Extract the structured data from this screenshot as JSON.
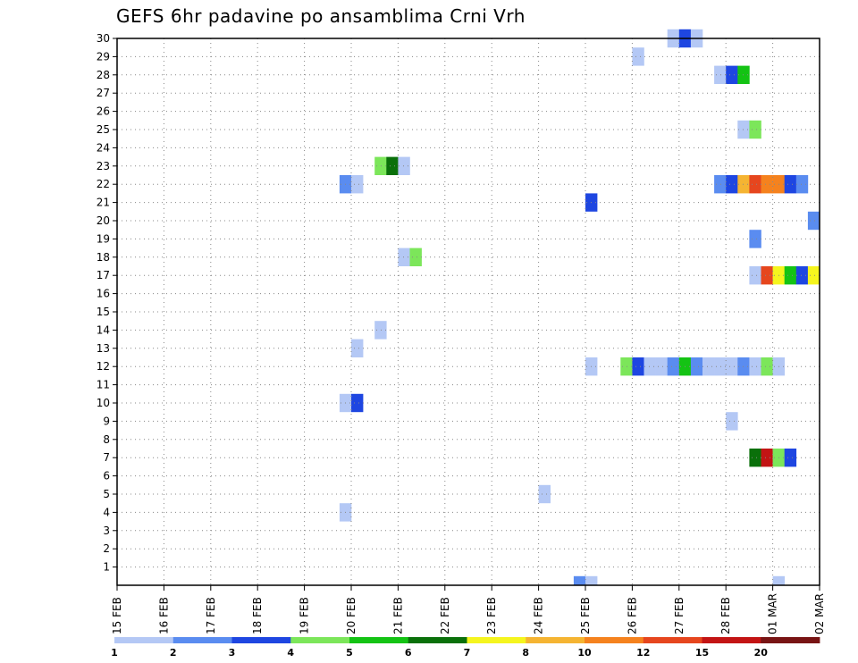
{
  "chart_data": {
    "type": "heatmap",
    "title": "GEFS 6hr padavine po ansamblima Crni Vrh",
    "xlabel": "",
    "ylabel": "",
    "x_ticks": [
      "15 FEB",
      "16 FEB",
      "17 FEB",
      "18 FEB",
      "19 FEB",
      "20 FEB",
      "21 FEB",
      "22 FEB",
      "23 FEB",
      "24 FEB",
      "25 FEB",
      "26 FEB",
      "27 FEB",
      "28 FEB",
      "01 MAR",
      "02 MAR"
    ],
    "y_ticks": [
      1,
      2,
      3,
      4,
      5,
      6,
      7,
      8,
      9,
      10,
      11,
      12,
      13,
      14,
      15,
      16,
      17,
      18,
      19,
      20,
      21,
      22,
      23,
      24,
      25,
      26,
      27,
      28,
      29,
      30
    ],
    "x_range_days": [
      0,
      15
    ],
    "time_step_hours": 6,
    "grid": true,
    "legend": {
      "placement": "bottom",
      "labels": [
        "1",
        "2",
        "3",
        "4",
        "5",
        "6",
        "7",
        "8",
        "10",
        "12",
        "15",
        "20"
      ],
      "colors": [
        "#b4c8f5",
        "#5a8cf0",
        "#1e46e1",
        "#7ce65a",
        "#14c314",
        "#0a700a",
        "#f5f51e",
        "#f5b432",
        "#f5821e",
        "#e6461e",
        "#c31414",
        "#781414"
      ]
    },
    "cells": [
      {
        "member": 30,
        "day": 11.75,
        "level": 1
      },
      {
        "member": 30,
        "day": 12.0,
        "level": 3
      },
      {
        "member": 30,
        "day": 12.25,
        "level": 1
      },
      {
        "member": 29,
        "day": 11.0,
        "level": 1
      },
      {
        "member": 28,
        "day": 12.75,
        "level": 1
      },
      {
        "member": 28,
        "day": 13.0,
        "level": 3
      },
      {
        "member": 28,
        "day": 13.25,
        "level": 5
      },
      {
        "member": 25,
        "day": 13.25,
        "level": 1
      },
      {
        "member": 25,
        "day": 13.5,
        "level": 4
      },
      {
        "member": 23,
        "day": 5.5,
        "level": 4
      },
      {
        "member": 23,
        "day": 5.75,
        "level": 6
      },
      {
        "member": 23,
        "day": 6.0,
        "level": 1
      },
      {
        "member": 22,
        "day": 4.75,
        "level": 2
      },
      {
        "member": 22,
        "day": 5.0,
        "level": 1
      },
      {
        "member": 22,
        "day": 12.75,
        "level": 2
      },
      {
        "member": 22,
        "day": 13.0,
        "level": 3
      },
      {
        "member": 22,
        "day": 13.25,
        "level": 8
      },
      {
        "member": 22,
        "day": 13.5,
        "level": 10
      },
      {
        "member": 22,
        "day": 13.75,
        "level": 9
      },
      {
        "member": 22,
        "day": 14.0,
        "level": 9
      },
      {
        "member": 22,
        "day": 14.25,
        "level": 3
      },
      {
        "member": 22,
        "day": 14.5,
        "level": 2
      },
      {
        "member": 21,
        "day": 10.0,
        "level": 3
      },
      {
        "member": 20,
        "day": 14.75,
        "level": 2
      },
      {
        "member": 19,
        "day": 13.5,
        "level": 2
      },
      {
        "member": 18,
        "day": 6.0,
        "level": 1
      },
      {
        "member": 18,
        "day": 6.25,
        "level": 4
      },
      {
        "member": 17,
        "day": 13.5,
        "level": 1
      },
      {
        "member": 17,
        "day": 13.75,
        "level": 10
      },
      {
        "member": 17,
        "day": 14.0,
        "level": 7
      },
      {
        "member": 17,
        "day": 14.25,
        "level": 5
      },
      {
        "member": 17,
        "day": 14.5,
        "level": 3
      },
      {
        "member": 17,
        "day": 14.75,
        "level": 7
      },
      {
        "member": 14,
        "day": 5.5,
        "level": 1
      },
      {
        "member": 13,
        "day": 5.0,
        "level": 1
      },
      {
        "member": 12,
        "day": 10.0,
        "level": 1
      },
      {
        "member": 12,
        "day": 10.75,
        "level": 4
      },
      {
        "member": 12,
        "day": 11.0,
        "level": 3
      },
      {
        "member": 12,
        "day": 11.25,
        "level": 1
      },
      {
        "member": 12,
        "day": 11.5,
        "level": 1
      },
      {
        "member": 12,
        "day": 11.75,
        "level": 2
      },
      {
        "member": 12,
        "day": 12.0,
        "level": 5
      },
      {
        "member": 12,
        "day": 12.25,
        "level": 2
      },
      {
        "member": 12,
        "day": 12.5,
        "level": 1
      },
      {
        "member": 12,
        "day": 12.75,
        "level": 1
      },
      {
        "member": 12,
        "day": 13.0,
        "level": 1
      },
      {
        "member": 12,
        "day": 13.25,
        "level": 2
      },
      {
        "member": 12,
        "day": 13.5,
        "level": 1
      },
      {
        "member": 12,
        "day": 13.75,
        "level": 4
      },
      {
        "member": 12,
        "day": 14.0,
        "level": 1
      },
      {
        "member": 10,
        "day": 4.75,
        "level": 1
      },
      {
        "member": 10,
        "day": 5.0,
        "level": 3
      },
      {
        "member": 9,
        "day": 13.0,
        "level": 1
      },
      {
        "member": 7,
        "day": 13.5,
        "level": 6
      },
      {
        "member": 7,
        "day": 13.75,
        "level": 11
      },
      {
        "member": 7,
        "day": 14.0,
        "level": 4
      },
      {
        "member": 7,
        "day": 14.25,
        "level": 3
      },
      {
        "member": 5,
        "day": 9.0,
        "level": 1
      },
      {
        "member": 4,
        "day": 4.75,
        "level": 1
      },
      {
        "member": 0,
        "day": 9.75,
        "level": 2
      },
      {
        "member": 0,
        "day": 10.0,
        "level": 1
      },
      {
        "member": 0,
        "day": 14.0,
        "level": 1
      }
    ]
  }
}
